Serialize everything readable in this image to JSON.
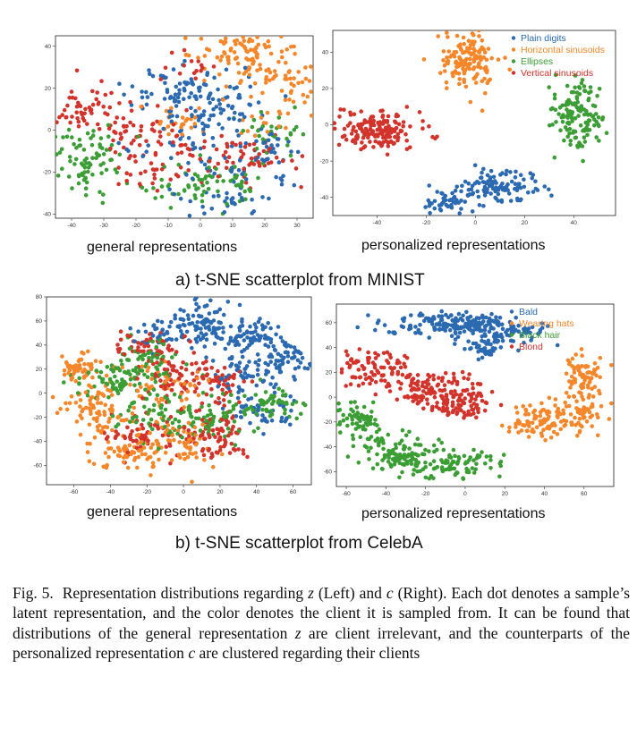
{
  "caption": {
    "fig_label": "Fig. 5.",
    "text_1": "Representation distributions regarding",
    "sym_z": "z",
    "text_2": "(Left) and",
    "sym_c": "c",
    "text_3": "(Right). Each dot denotes a sample’s latent representation, and the color denotes the client it is sampled from. It can be found that distributions of the general representation",
    "text_4": "are client irrelevant, and the counterparts of the personalized representation",
    "text_5": "are clustered regarding their clients"
  },
  "subcaptions": {
    "a": "a) t-SNE scatterplot from MINIST",
    "b": "b) t-SNE scatterplot from CelebA"
  },
  "plot_labels": {
    "general": "general representations",
    "personalized": "personalized representations"
  },
  "colors": {
    "blue": "#2b6ab1",
    "orange": "#f5872a",
    "green": "#3b9e35",
    "red": "#d2332a"
  },
  "chart_data": [
    {
      "id": "mnist-general",
      "type": "scatter",
      "xlabel": "general representations",
      "xlim": [
        -45,
        35
      ],
      "ylim": [
        -42,
        45
      ],
      "xticks": [
        -40,
        -30,
        -20,
        -10,
        0,
        10,
        20,
        30
      ],
      "yticks": [
        -40,
        -20,
        0,
        20,
        40
      ],
      "legend": null,
      "series": [
        {
          "name": "",
          "color": "#2b6ab1",
          "clusters": [
            [
              -7,
              17,
              8,
              6,
              70
            ],
            [
              5,
              12,
              8,
              7,
              55
            ],
            [
              -3,
              -4,
              10,
              7,
              45
            ],
            [
              13,
              -20,
              10,
              5,
              35
            ],
            [
              8,
              -33,
              6,
              4,
              30
            ],
            [
              22,
              -8,
              5,
              5,
              20
            ]
          ]
        },
        {
          "name": "",
          "color": "#f5872a",
          "clusters": [
            [
              14,
              38,
              8,
              5,
              80
            ],
            [
              22,
              26,
              8,
              6,
              55
            ],
            [
              33,
              17,
              4,
              6,
              20
            ],
            [
              -6,
              5,
              5,
              4,
              25
            ],
            [
              20,
              4,
              5,
              4,
              15
            ]
          ]
        },
        {
          "name": "",
          "color": "#3b9e35",
          "clusters": [
            [
              -37,
              -18,
              5,
              7,
              45
            ],
            [
              -28,
              -10,
              5,
              5,
              25
            ],
            [
              -5,
              -27,
              7,
              5,
              40
            ],
            [
              10,
              -25,
              5,
              4,
              30
            ],
            [
              22,
              0,
              6,
              5,
              30
            ],
            [
              -40,
              -4,
              4,
              3,
              15
            ]
          ]
        },
        {
          "name": "",
          "color": "#d2332a",
          "clusters": [
            [
              -37,
              10,
              5,
              5,
              50
            ],
            [
              -22,
              0,
              7,
              6,
              45
            ],
            [
              5,
              -10,
              10,
              6,
              50
            ],
            [
              20,
              -13,
              6,
              6,
              30
            ],
            [
              -3,
              30,
              5,
              4,
              15
            ],
            [
              -18,
              -20,
              5,
              5,
              25
            ]
          ]
        }
      ]
    },
    {
      "id": "mnist-personalized",
      "type": "scatter",
      "xlabel": "personalized representations",
      "xlim": [
        -58,
        57
      ],
      "ylim": [
        -50,
        52
      ],
      "xticks": [
        -40,
        -20,
        0,
        20,
        40
      ],
      "yticks": [
        -40,
        -20,
        0,
        20,
        40
      ],
      "legend": "top-right",
      "series": [
        {
          "name": "Plain digits",
          "color": "#2b6ab1",
          "clusters": [
            [
              7,
              -34,
              8,
              4,
              110
            ],
            [
              -10,
              -42,
              5,
              3,
              40
            ]
          ]
        },
        {
          "name": "Horizontal sinusoids",
          "color": "#f5872a",
          "clusters": [
            [
              -3,
              35,
              6,
              8,
              140
            ]
          ]
        },
        {
          "name": "Ellipses",
          "color": "#3b9e35",
          "clusters": [
            [
              42,
              5,
              5,
              10,
              140
            ]
          ]
        },
        {
          "name": "Vertical sinusoids",
          "color": "#d2332a",
          "clusters": [
            [
              -38,
              -3,
              8,
              5,
              170
            ]
          ]
        }
      ]
    },
    {
      "id": "celeba-general",
      "type": "scatter",
      "xlabel": "general representations",
      "xlim": [
        -75,
        70
      ],
      "ylim": [
        -76,
        80
      ],
      "xticks": [
        -60,
        -40,
        -20,
        0,
        20,
        40,
        60
      ],
      "yticks": [
        -60,
        -40,
        -20,
        0,
        20,
        40,
        60,
        80
      ],
      "legend": null,
      "series": [
        {
          "name": "",
          "color": "#2b6ab1",
          "clusters": [
            [
              10,
              58,
              10,
              8,
              90
            ],
            [
              35,
              48,
              10,
              7,
              70
            ],
            [
              55,
              25,
              7,
              10,
              70
            ],
            [
              30,
              15,
              8,
              8,
              50
            ],
            [
              -15,
              50,
              6,
              6,
              30
            ],
            [
              40,
              -15,
              10,
              8,
              45
            ]
          ]
        },
        {
          "name": "",
          "color": "#f5872a",
          "clusters": [
            [
              -55,
              22,
              8,
              5,
              50
            ],
            [
              -45,
              -15,
              10,
              12,
              90
            ],
            [
              -30,
              -48,
              10,
              8,
              70
            ],
            [
              0,
              -40,
              10,
              10,
              60
            ],
            [
              -10,
              5,
              10,
              10,
              50
            ]
          ]
        },
        {
          "name": "",
          "color": "#3b9e35",
          "clusters": [
            [
              -40,
              10,
              10,
              8,
              60
            ],
            [
              -20,
              25,
              10,
              10,
              70
            ],
            [
              20,
              -20,
              10,
              12,
              70
            ],
            [
              50,
              -10,
              8,
              8,
              45
            ],
            [
              -15,
              -20,
              10,
              10,
              60
            ]
          ]
        },
        {
          "name": "",
          "color": "#d2332a",
          "clusters": [
            [
              -20,
              40,
              8,
              6,
              50
            ],
            [
              0,
              15,
              10,
              10,
              70
            ],
            [
              15,
              -35,
              10,
              12,
              80
            ],
            [
              -25,
              -35,
              10,
              10,
              60
            ],
            [
              20,
              10,
              7,
              8,
              40
            ]
          ]
        }
      ]
    },
    {
      "id": "celeba-personalized",
      "type": "scatter",
      "xlabel": "personalized representations",
      "xlim": [
        -65,
        75
      ],
      "ylim": [
        -72,
        75
      ],
      "xticks": [
        -60,
        -40,
        -20,
        0,
        20,
        40,
        60
      ],
      "yticks": [
        -60,
        -40,
        -20,
        0,
        20,
        40,
        60
      ],
      "legend": "top-right",
      "series": [
        {
          "name": "Bald",
          "color": "#2b6ab1",
          "clusters": [
            [
              -8,
              58,
              16,
              5,
              150
            ],
            [
              20,
              53,
              12,
              6,
              90
            ],
            [
              10,
              40,
              5,
              4,
              30
            ]
          ]
        },
        {
          "name": "Wearing hats",
          "color": "#f5872a",
          "clusters": [
            [
              60,
              15,
              5,
              10,
              80
            ],
            [
              50,
              -15,
              12,
              8,
              100
            ],
            [
              35,
              -25,
              8,
              4,
              40
            ]
          ]
        },
        {
          "name": "Black hair",
          "color": "#3b9e35",
          "clusters": [
            [
              -55,
              -20,
              6,
              6,
              60
            ],
            [
              -35,
              -42,
              10,
              8,
              90
            ],
            [
              -10,
              -55,
              14,
              6,
              110
            ]
          ]
        },
        {
          "name": "Blond",
          "color": "#d2332a",
          "clusters": [
            [
              -45,
              22,
              8,
              8,
              80
            ],
            [
              -15,
              5,
              14,
              8,
              140
            ],
            [
              -2,
              -10,
              8,
              4,
              50
            ]
          ]
        }
      ]
    }
  ]
}
